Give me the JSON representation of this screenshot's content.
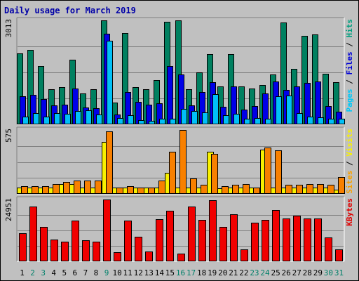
{
  "chart_data": {
    "type": "bar",
    "title": "Daily usage for March 2019",
    "categories": [
      "1",
      "2",
      "3",
      "4",
      "5",
      "6",
      "7",
      "8",
      "9",
      "10",
      "11",
      "12",
      "13",
      "14",
      "15",
      "16",
      "17",
      "18",
      "19",
      "20",
      "21",
      "22",
      "23",
      "24",
      "25",
      "26",
      "27",
      "28",
      "29",
      "30",
      "31"
    ],
    "weekend_days": [
      2,
      3,
      9,
      16,
      17,
      23,
      24,
      30,
      31
    ],
    "panels": [
      {
        "name": "hits-files-pages",
        "ymax_label": "3013",
        "ymax": 3013,
        "legend": [
          {
            "text": "Pages",
            "color": "#00c8f8"
          },
          {
            "text": " / ",
            "color": "#000000"
          },
          {
            "text": "Files",
            "color": "#0000d8"
          },
          {
            "text": " / ",
            "color": "#000000"
          },
          {
            "text": "Hits",
            "color": "#00a080"
          }
        ],
        "series": [
          {
            "name": "Hits",
            "color": "#008060",
            "values": [
              2060,
              2165,
              1680,
              1010,
              1080,
              1875,
              900,
              1025,
              3013,
              640,
              2650,
              1070,
              1020,
              1280,
              2980,
              3013,
              1025,
              1500,
              2030,
              1100,
              2030,
              1090,
              1030,
              1150,
              1440,
              2950,
              1610,
              2560,
              2610,
              1460,
              1230
            ]
          },
          {
            "name": "Files",
            "color": "#0000e8",
            "values": [
              810,
              850,
              740,
              550,
              560,
              1040,
              480,
              460,
              2620,
              290,
              930,
              660,
              570,
              610,
              1690,
              1440,
              540,
              930,
              1220,
              500,
              1090,
              420,
              520,
              890,
              1240,
              1000,
              1090,
              1210,
              1240,
              520,
              370
            ]
          },
          {
            "name": "Pages",
            "color": "#00c0f8",
            "values": [
              220,
              320,
              230,
              330,
              300,
              380,
              400,
              290,
              2420,
              190,
              270,
              130,
              110,
              160,
              160,
              440,
              390,
              340,
              870,
              260,
              300,
              160,
              190,
              170,
              820,
              830,
              330,
              230,
              210,
              160,
              170
            ]
          }
        ]
      },
      {
        "name": "visits-sites",
        "ymax_label": "575",
        "ymax": 575,
        "legend": [
          {
            "text": "Sites",
            "color": "#f8a000"
          },
          {
            "text": " / ",
            "color": "#000000"
          },
          {
            "text": "Visits",
            "color": "#f8f000"
          }
        ],
        "series": [
          {
            "name": "Visits",
            "color": "#f8f000",
            "values": [
              60,
              60,
              60,
              60,
              90,
              90,
              60,
              60,
              470,
              60,
              60,
              60,
              60,
              60,
              190,
              60,
              60,
              60,
              380,
              50,
              60,
              60,
              60,
              400,
              60,
              60,
              60,
              60,
              60,
              60,
              40
            ]
          },
          {
            "name": "Sites",
            "color": "#f88000",
            "values": [
              70,
              70,
              70,
              90,
              110,
              120,
              120,
              120,
              560,
              60,
              70,
              60,
              60,
              120,
              380,
              580,
              140,
              80,
              360,
              70,
              80,
              90,
              60,
              420,
              390,
              80,
              80,
              90,
              90,
              80,
              150
            ]
          }
        ]
      },
      {
        "name": "kbytes",
        "ymax_label": "24951",
        "ymax": 24951,
        "legend": [
          {
            "text": "KBytes",
            "color": "#e00000"
          }
        ],
        "series": [
          {
            "name": "KBytes",
            "color": "#f00000",
            "values": [
              11300,
              22100,
              14000,
              8800,
              7900,
              16400,
              8500,
              7900,
              25000,
              3600,
              16400,
              9900,
              3900,
              17000,
              20400,
              3100,
              22000,
              16700,
              24800,
              13900,
              18900,
              4800,
              15600,
              16800,
              20800,
              17200,
              18300,
              17300,
              17200,
              9500,
              4700
            ]
          }
        ]
      }
    ]
  }
}
